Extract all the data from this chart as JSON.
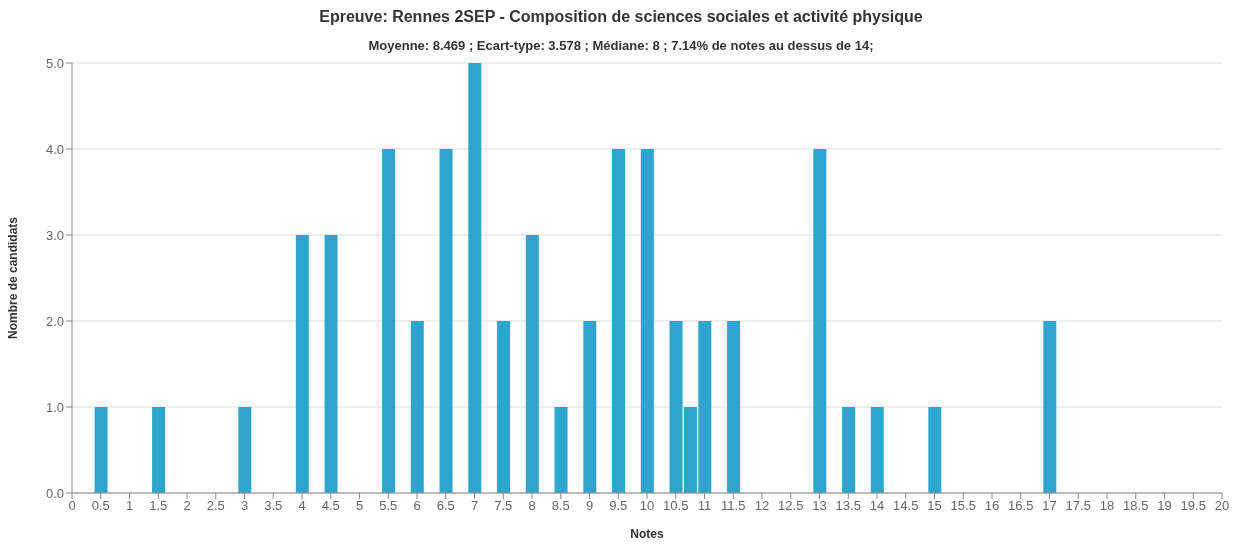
{
  "chart_data": {
    "type": "bar",
    "title": "Epreuve: Rennes 2SEP - Composition de sciences sociales et activité physique",
    "subtitle": "Moyenne: 8.469 ; Ecart-type: 3.578 ; Médiane: 8 ; 7.14% de notes au dessus de 14;",
    "xlabel": "Notes",
    "ylabel": "Nombre de candidats",
    "x": [
      0.5,
      1.5,
      3,
      4,
      4.5,
      5.5,
      6,
      6.5,
      7,
      7.5,
      8,
      8.5,
      9,
      9.5,
      10,
      10.5,
      10.75,
      11,
      11.5,
      13,
      13.5,
      14,
      15,
      17
    ],
    "values": [
      1,
      1,
      1,
      3,
      3,
      4,
      2,
      4,
      5,
      2,
      3,
      1,
      2,
      4,
      4,
      2,
      1,
      2,
      2,
      4,
      1,
      1,
      1,
      2
    ],
    "color": "#2ea5cf",
    "xlim": [
      0,
      20
    ],
    "xticks": [
      0,
      0.5,
      1,
      1.5,
      2,
      2.5,
      3,
      3.5,
      4,
      4.5,
      5,
      5.5,
      6,
      6.5,
      7,
      7.5,
      8,
      8.5,
      9,
      9.5,
      10,
      10.5,
      11,
      11.5,
      12,
      12.5,
      13,
      13.5,
      14,
      14.5,
      15,
      15.5,
      16,
      16.5,
      17,
      17.5,
      18,
      18.5,
      19,
      19.5,
      20
    ],
    "ylim": [
      0,
      5
    ],
    "yticks": [
      {
        "value": 0,
        "label": "0.0"
      },
      {
        "value": 1,
        "label": "1.0"
      },
      {
        "value": 2,
        "label": "2.0"
      },
      {
        "value": 3,
        "label": "3.0"
      },
      {
        "value": 4,
        "label": "4.0"
      },
      {
        "value": 5,
        "label": "5.0"
      }
    ],
    "grid": "y"
  }
}
